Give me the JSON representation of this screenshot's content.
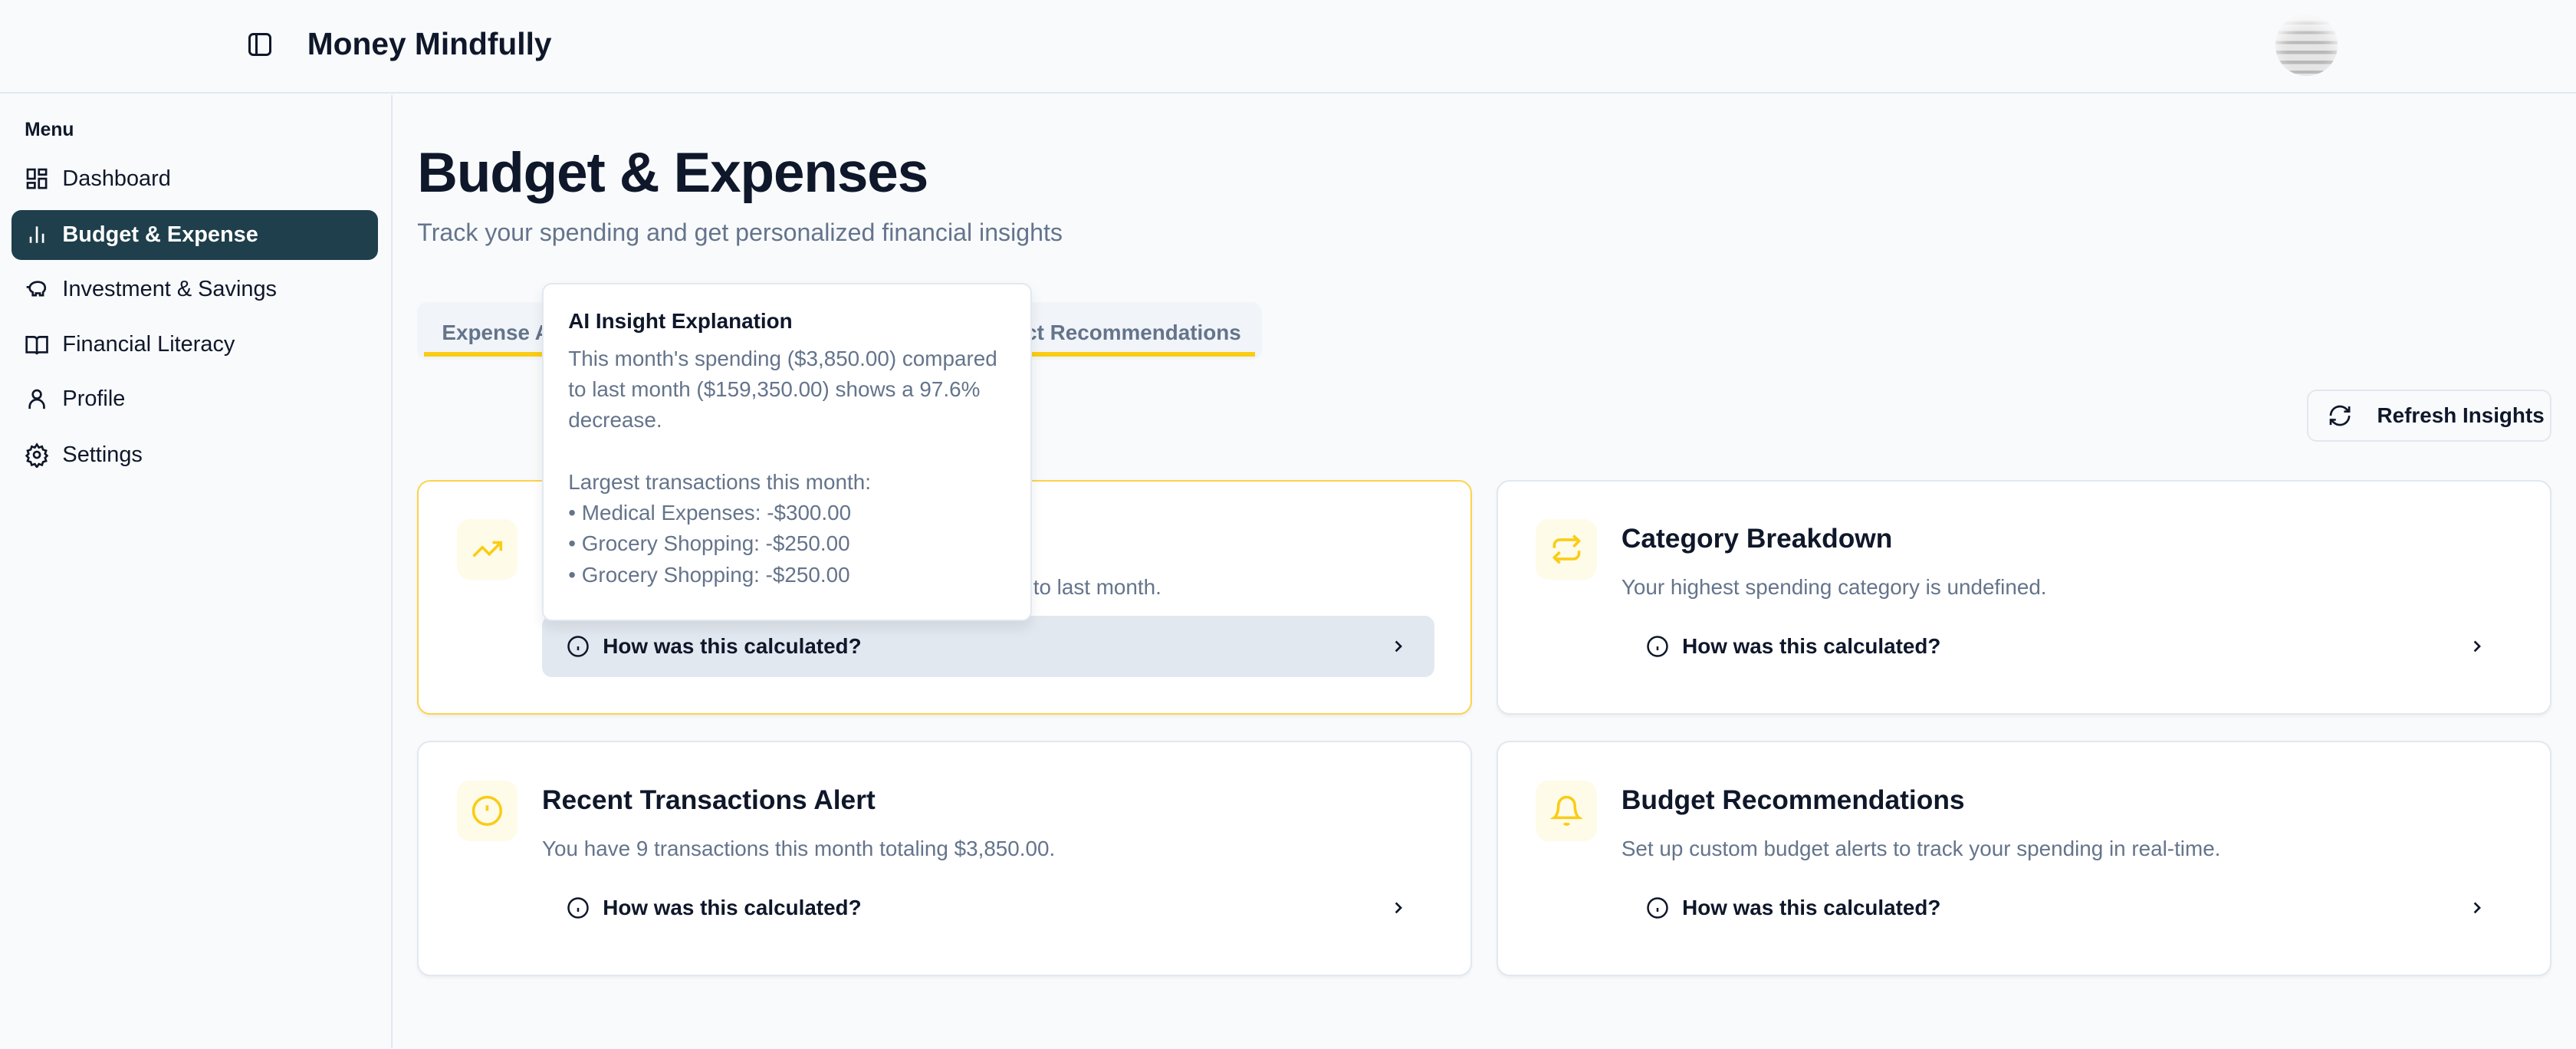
{
  "header": {
    "title": "Money Mindfully",
    "avatar": "user-avatar"
  },
  "sidebar": {
    "menu_label": "Menu",
    "items": [
      {
        "label": "Dashboard",
        "icon": "dashboard-icon"
      },
      {
        "label": "Budget & Expense",
        "icon": "bar-chart-icon",
        "active": true
      },
      {
        "label": "Investment & Savings",
        "icon": "piggy-bank-icon"
      },
      {
        "label": "Financial Literacy",
        "icon": "book-icon"
      },
      {
        "label": "Profile",
        "icon": "user-icon"
      },
      {
        "label": "Settings",
        "icon": "gear-icon"
      }
    ]
  },
  "main": {
    "title": "Budget & Expenses",
    "subtitle": "Track your spending and get personalized financial insights",
    "tabs": [
      {
        "label": "Expense A"
      },
      {
        "label": "ct Recommendations"
      }
    ],
    "refresh_label": "Refresh Insights",
    "cards": [
      {
        "title": "",
        "description": "to last month.",
        "calc": "How was this calculated?",
        "icon": "trending-up-icon"
      },
      {
        "title": "Category Breakdown",
        "description": "Your highest spending category is undefined.",
        "calc": "How was this calculated?",
        "icon": "repeat-icon"
      },
      {
        "title": "Recent Transactions Alert",
        "description": "You have 9 transactions this month totaling $3,850.00.",
        "calc": "How was this calculated?",
        "icon": "alert-circle-icon"
      },
      {
        "title": "Budget Recommendations",
        "description": "Set up custom budget alerts to track your spending in real-time.",
        "calc": "How was this calculated?",
        "icon": "bell-icon"
      }
    ]
  },
  "tooltip": {
    "title": "AI Insight Explanation",
    "lines": [
      "This month's spending ($3,850.00) compared",
      "to last month ($159,350.00) shows a 97.6%",
      "decrease.",
      "",
      "Largest transactions this month:",
      "• Medical Expenses: -$300.00",
      "• Grocery Shopping: -$250.00",
      "• Grocery Shopping: -$250.00"
    ]
  },
  "colors": {
    "accent": "#facc15",
    "sidebar_active": "#1e3f4b",
    "muted": "#64748b"
  }
}
